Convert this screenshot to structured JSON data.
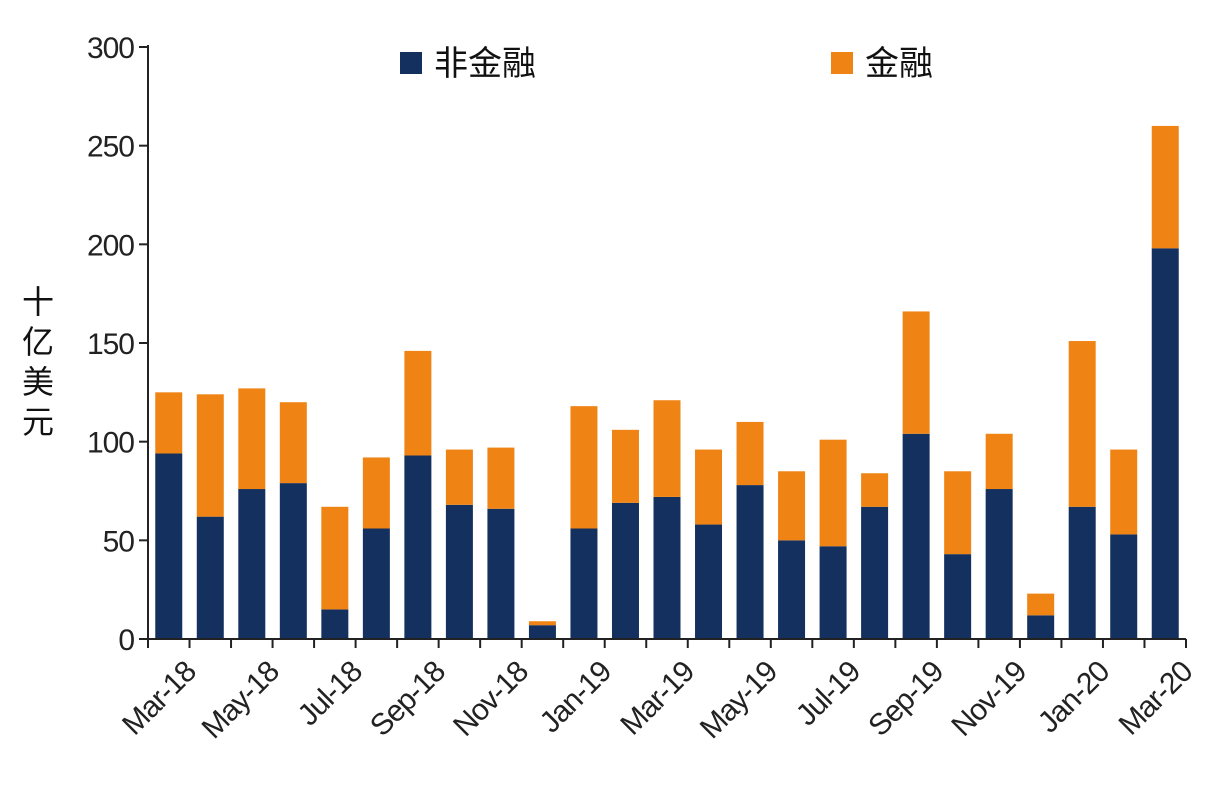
{
  "chart_data": {
    "type": "bar",
    "stacked": true,
    "categories": [
      "Mar-18",
      "Apr-18",
      "May-18",
      "Jun-18",
      "Jul-18",
      "Aug-18",
      "Sep-18",
      "Oct-18",
      "Nov-18",
      "Dec-18",
      "Jan-19",
      "Feb-19",
      "Mar-19",
      "Apr-19",
      "May-19",
      "Jun-19",
      "Jul-19",
      "Aug-19",
      "Sep-19",
      "Oct-19",
      "Nov-19",
      "Dec-19",
      "Jan-20",
      "Feb-20",
      "Mar-20"
    ],
    "x_tick_labels": [
      "Mar-18",
      "May-18",
      "Jul-18",
      "Sep-18",
      "Nov-18",
      "Jan-19",
      "Mar-19",
      "May-19",
      "Jul-19",
      "Sep-19",
      "Nov-19",
      "Jan-20",
      "Mar-20"
    ],
    "series": [
      {
        "name": "非金融",
        "color": "#14305e",
        "values": [
          94,
          62,
          76,
          79,
          15,
          56,
          93,
          68,
          66,
          7,
          56,
          69,
          72,
          58,
          78,
          50,
          47,
          67,
          104,
          43,
          76,
          12,
          67,
          53,
          198
        ]
      },
      {
        "name": "金融",
        "color": "#ef8415",
        "values": [
          31,
          62,
          51,
          41,
          52,
          36,
          53,
          28,
          31,
          2,
          62,
          37,
          49,
          38,
          32,
          35,
          54,
          17,
          62,
          42,
          28,
          11,
          84,
          43,
          62
        ]
      }
    ],
    "ylabel": "十亿美元",
    "xlabel": "",
    "ylim": [
      0,
      300
    ],
    "yticks": [
      0,
      50,
      100,
      150,
      200,
      250,
      300
    ],
    "grid": false,
    "legend_position": "top"
  }
}
